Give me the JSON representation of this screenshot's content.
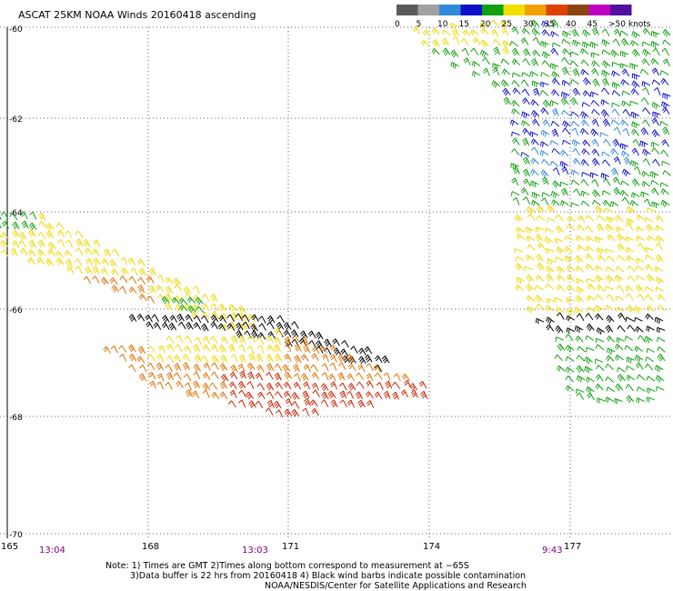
{
  "title": "ASCAT 25KM NOAA Winds 20160418 ascending",
  "legend": {
    "labels": [
      "0",
      "5",
      "10",
      "15",
      "20",
      "25",
      "30",
      "35",
      "40",
      "45",
      ">50 knots"
    ],
    "colors": [
      "#5a5a5a",
      "#a0a0a0",
      "#2f8bd9",
      "#1010c8",
      "#10a010",
      "#f0e000",
      "#f0a000",
      "#e04000",
      "#8b4513",
      "#c000c0",
      "#5010a0"
    ]
  },
  "lat_labels": [
    "-60",
    "-62",
    "-64",
    "-66",
    "-68",
    "-70"
  ],
  "lon_labels": [
    "165",
    "168",
    "171",
    "174",
    "177"
  ],
  "time_labels": [
    "13:04",
    "13:03",
    "9:43"
  ],
  "notes": [
    "Note: 1) Times are GMT 2)Times along bottom correspond to measurement at −65S",
    "3)Data buffer is 22 hrs from 20160418 4) Black wind barbs indicate possible contamination",
    "NOAA/NESDIS/Center for Satellite Applications and Research"
  ],
  "colors": {
    "time_label": "#800080",
    "black_barb": "#000000",
    "orange_barb": "#e07000",
    "red_barb": "#d02000"
  }
}
